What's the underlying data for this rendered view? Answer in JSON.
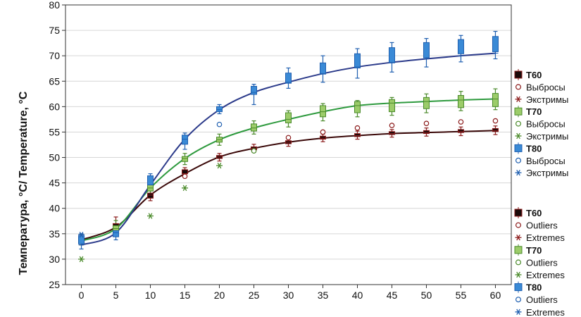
{
  "chart_data": {
    "type": "box-line",
    "ylabel": "Температура, °C/ Temperature, °C",
    "xlabel": "",
    "x": [
      0,
      5,
      10,
      15,
      20,
      25,
      30,
      35,
      40,
      45,
      50,
      55,
      60
    ],
    "xlim": [
      -2.3,
      62.3
    ],
    "ylim": [
      25,
      80
    ],
    "yticks": [
      25,
      30,
      35,
      40,
      45,
      50,
      55,
      60,
      65,
      70,
      75,
      80
    ],
    "grid": "horizontal",
    "legend_position": "right",
    "series": [
      {
        "name": "T60",
        "color": "#8b1a1a",
        "box_fill": "#1a0a0a",
        "line_color": "#3a0808",
        "curve": [
          33.8,
          36.3,
          42.6,
          46.8,
          50.1,
          51.8,
          53.0,
          53.8,
          54.3,
          54.7,
          54.9,
          55.1,
          55.3
        ],
        "box": [
          [
            33.3,
            34.3
          ],
          [
            36.0,
            37.0
          ],
          [
            42.0,
            43.0
          ],
          [
            46.8,
            47.6
          ],
          [
            49.8,
            50.4
          ],
          [
            51.5,
            52.1
          ],
          [
            52.7,
            53.3
          ],
          [
            53.6,
            54.2
          ],
          [
            54.1,
            54.7
          ],
          [
            54.5,
            55.1
          ],
          [
            54.7,
            55.3
          ],
          [
            54.9,
            55.5
          ],
          [
            55.1,
            55.7
          ]
        ],
        "whisker": [
          [
            32.8,
            34.8
          ],
          [
            35.5,
            38.3
          ],
          [
            41.5,
            43.5
          ],
          [
            46.3,
            48.0
          ],
          [
            49.3,
            50.8
          ],
          [
            51.0,
            52.6
          ],
          [
            52.2,
            53.8
          ],
          [
            53.1,
            54.6
          ],
          [
            53.6,
            55.2
          ],
          [
            54.0,
            55.5
          ],
          [
            54.2,
            55.8
          ],
          [
            54.3,
            56.0
          ],
          [
            54.5,
            56.2
          ]
        ],
        "outliers": [
          [
            15,
            46.3
          ],
          [
            30,
            53.9
          ],
          [
            35,
            55.0
          ],
          [
            40,
            55.8
          ],
          [
            45,
            56.3
          ],
          [
            50,
            56.7
          ],
          [
            55,
            57.0
          ],
          [
            60,
            57.2
          ]
        ],
        "extremes": []
      },
      {
        "name": "T70",
        "color": "#4a8a2a",
        "box_fill": "#9ccc6a",
        "line_color": "#2e9a3e",
        "curve": [
          33.6,
          36.0,
          44.0,
          49.8,
          53.5,
          55.8,
          57.5,
          59.0,
          60.2,
          60.7,
          61.0,
          61.3,
          61.5
        ],
        "box": [
          [
            33.1,
            34.1
          ],
          [
            35.4,
            36.6
          ],
          [
            43.4,
            44.6
          ],
          [
            49.2,
            50.2
          ],
          [
            53.0,
            54.0
          ],
          [
            55.2,
            56.6
          ],
          [
            56.8,
            58.8
          ],
          [
            58.0,
            60.2
          ],
          [
            58.8,
            61.0
          ],
          [
            59.0,
            61.4
          ],
          [
            59.6,
            61.8
          ],
          [
            59.8,
            62.2
          ],
          [
            60.0,
            62.6
          ]
        ],
        "whisker": [
          [
            32.8,
            34.8
          ],
          [
            34.8,
            37.6
          ],
          [
            42.8,
            45.2
          ],
          [
            48.6,
            50.8
          ],
          [
            52.4,
            54.6
          ],
          [
            54.6,
            57.2
          ],
          [
            56.0,
            59.2
          ],
          [
            57.2,
            60.6
          ],
          [
            58.0,
            61.2
          ],
          [
            58.3,
            61.8
          ],
          [
            58.8,
            62.5
          ],
          [
            59.2,
            63.0
          ],
          [
            59.4,
            63.5
          ]
        ],
        "outliers": [
          [
            25,
            51.3
          ]
        ],
        "extremes": [
          [
            0,
            30.0
          ],
          [
            10,
            38.5
          ],
          [
            15,
            44.0
          ],
          [
            20,
            48.4
          ]
        ]
      },
      {
        "name": "T80",
        "color": "#1f5fb0",
        "box_fill": "#3a8ad6",
        "line_color": "#2b3a8a",
        "curve": [
          32.8,
          35.2,
          44.6,
          53.6,
          59.4,
          62.8,
          64.8,
          66.5,
          67.8,
          68.7,
          69.4,
          70.0,
          70.5
        ],
        "box": [
          [
            33.0,
            34.6
          ],
          [
            34.4,
            35.6
          ],
          [
            44.6,
            46.4
          ],
          [
            52.6,
            54.4
          ],
          [
            59.0,
            60.0
          ],
          [
            62.4,
            64.0
          ],
          [
            64.6,
            66.6
          ],
          [
            66.4,
            68.6
          ],
          [
            67.6,
            70.4
          ],
          [
            68.6,
            71.6
          ],
          [
            69.6,
            72.6
          ],
          [
            70.4,
            73.2
          ],
          [
            70.8,
            73.8
          ]
        ],
        "whisker": [
          [
            32.0,
            35.0
          ],
          [
            33.8,
            36.4
          ],
          [
            44.0,
            46.8
          ],
          [
            51.6,
            54.8
          ],
          [
            58.6,
            60.4
          ],
          [
            60.4,
            64.4
          ],
          [
            63.6,
            67.6
          ],
          [
            64.8,
            70.0
          ],
          [
            65.6,
            71.4
          ],
          [
            66.8,
            72.6
          ],
          [
            67.8,
            73.4
          ],
          [
            68.8,
            74.0
          ],
          [
            69.4,
            74.8
          ]
        ],
        "outliers": [
          [
            20,
            56.5
          ]
        ],
        "extremes": [
          [
            0,
            34.8
          ]
        ]
      }
    ]
  },
  "legend_top": [
    {
      "label": "T60",
      "kind": "box",
      "series": 0
    },
    {
      "label": "Выбросы",
      "kind": "outlier",
      "series": 0
    },
    {
      "label": "Экстримы",
      "kind": "extreme",
      "series": 0
    },
    {
      "label": "T70",
      "kind": "box",
      "series": 1
    },
    {
      "label": "Выбросы",
      "kind": "outlier",
      "series": 1
    },
    {
      "label": "Экстримы",
      "kind": "extreme",
      "series": 1
    },
    {
      "label": "T80",
      "kind": "box",
      "series": 2
    },
    {
      "label": "Выбросы",
      "kind": "outlier",
      "series": 2
    },
    {
      "label": "Экстримы",
      "kind": "extreme",
      "series": 2
    }
  ],
  "legend_bottom": [
    {
      "label": "T60",
      "kind": "box",
      "series": 0
    },
    {
      "label": "Outliers",
      "kind": "outlier",
      "series": 0
    },
    {
      "label": "Extremes",
      "kind": "extreme",
      "series": 0
    },
    {
      "label": "T70",
      "kind": "box",
      "series": 1
    },
    {
      "label": "Outliers",
      "kind": "outlier",
      "series": 1
    },
    {
      "label": "Extremes",
      "kind": "extreme",
      "series": 1
    },
    {
      "label": "T80",
      "kind": "box",
      "series": 2
    },
    {
      "label": "Outliers",
      "kind": "outlier",
      "series": 2
    },
    {
      "label": "Extremes",
      "kind": "extreme",
      "series": 2
    }
  ]
}
